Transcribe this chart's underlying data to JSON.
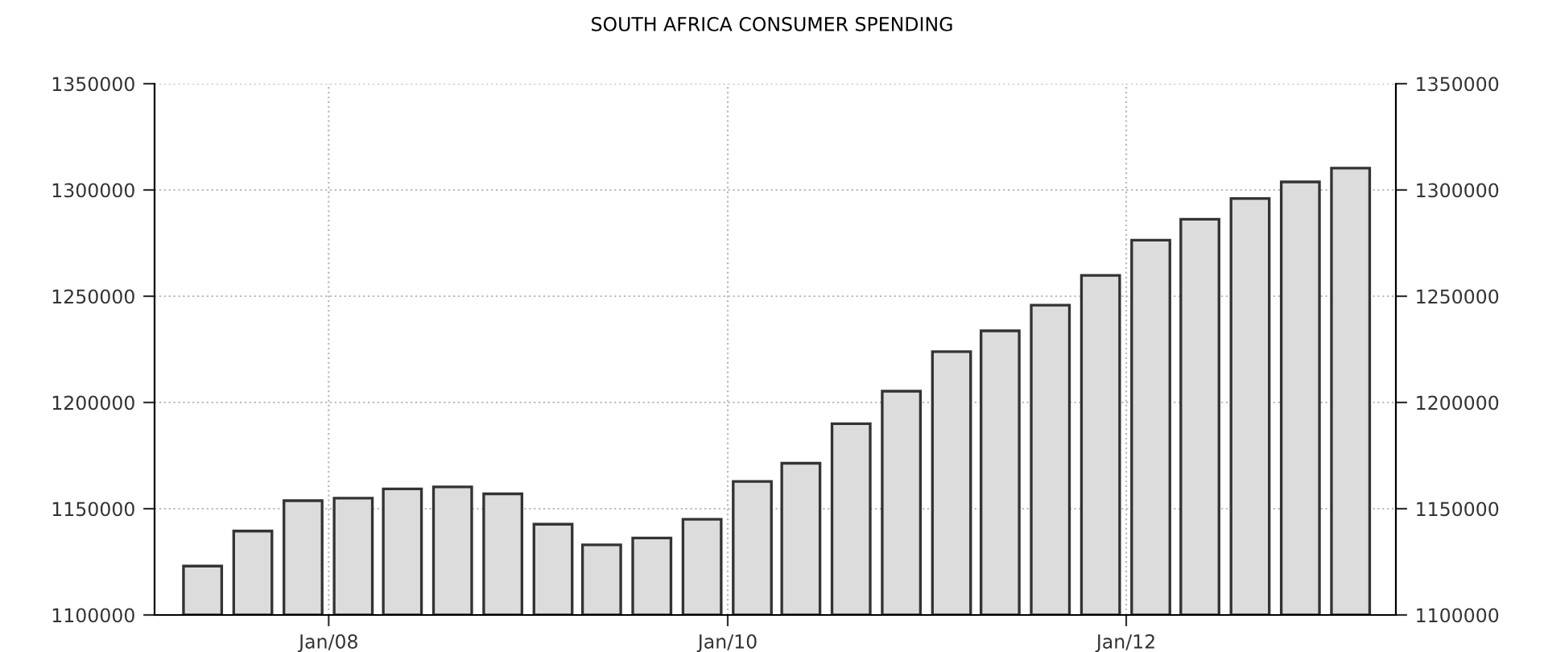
{
  "chart_data": {
    "type": "bar",
    "title": "SOUTH AFRICA CONSUMER SPENDING",
    "x": [
      "2007-05-15",
      "2007-08-15",
      "2007-11-15",
      "2008-02-15",
      "2008-05-15",
      "2008-08-15",
      "2008-11-15",
      "2009-02-15",
      "2009-05-15",
      "2009-08-15",
      "2009-11-15",
      "2010-02-15",
      "2010-05-15",
      "2010-08-15",
      "2010-11-15",
      "2011-02-15",
      "2011-05-15",
      "2011-08-15",
      "2011-11-15",
      "2012-02-15",
      "2012-05-15",
      "2012-08-15",
      "2012-11-15",
      "2013-02-15"
    ],
    "series": [
      {
        "color": "#dcdcdc",
        "values": [
          1123000,
          1139500,
          1153800,
          1155000,
          1159300,
          1160300,
          1157000,
          1142700,
          1133000,
          1136200,
          1145000,
          1162800,
          1171400,
          1190000,
          1205300,
          1223900,
          1233700,
          1245800,
          1259800,
          1276400,
          1286200,
          1296000,
          1303800,
          1310300
        ]
      }
    ],
    "xlim": [
      "2007-02-16",
      "2013-05-09"
    ],
    "xticks": [
      {
        "value": "2008-01-01",
        "label": "Jan/08"
      },
      {
        "value": "2010-01-01",
        "label": "Jan/10"
      },
      {
        "value": "2012-01-01",
        "label": "Jan/12"
      }
    ],
    "ylim": [
      1100000,
      1350000
    ],
    "yticks": [
      1100000,
      1150000,
      1200000,
      1250000,
      1300000,
      1350000
    ],
    "y2lim": [
      1100000,
      1350000
    ],
    "y2ticks": [
      1100000,
      1150000,
      1200000,
      1250000,
      1300000,
      1350000
    ],
    "grid": true,
    "legend": false
  }
}
